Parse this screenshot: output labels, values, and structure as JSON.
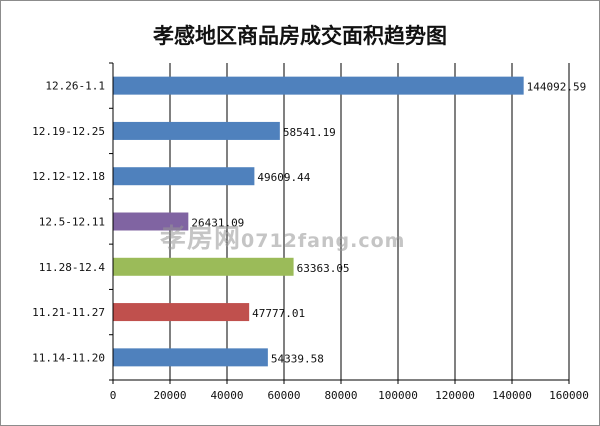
{
  "chart_data": {
    "type": "bar",
    "orientation": "horizontal",
    "title": "孝感地区商品房成交面积趋势图",
    "categories": [
      "12.26-1.1",
      "12.19-12.25",
      "12.12-12.18",
      "12.5-12.11",
      "11.28-12.4",
      "11.21-11.27",
      "11.14-11.20"
    ],
    "values": [
      144092.59,
      58541.19,
      49609.44,
      26431.09,
      63363.05,
      47777.01,
      54339.58
    ],
    "labels": [
      "144092.59",
      "58541.19",
      "49609.44",
      "26431.09",
      "63363.05",
      "47777.01",
      "54339.58"
    ],
    "bar_colors": [
      "#4f81bd",
      "#4f81bd",
      "#4f81bd",
      "#8064a2",
      "#9bbb59",
      "#c0504d",
      "#4f81bd"
    ],
    "xlim": [
      0,
      160000
    ],
    "xticks": [
      "0",
      "20000",
      "40000",
      "60000",
      "80000",
      "100000",
      "120000",
      "140000",
      "160000"
    ],
    "xtick_values": [
      0,
      20000,
      40000,
      60000,
      80000,
      100000,
      120000,
      140000,
      160000
    ],
    "grid": "vertical"
  },
  "watermark": {
    "chinese": "孝房网",
    "url": "0712fang.com"
  }
}
